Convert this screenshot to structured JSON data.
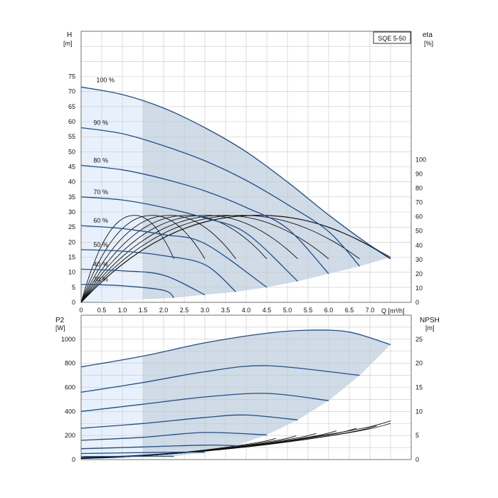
{
  "chart_data": [
    {
      "type": "line",
      "title": "SQE 5-50",
      "ylabel": "H",
      "yunit": "[m]",
      "y2label": "eta",
      "y2unit": "[%]",
      "xlabel": "Q [m³/h]",
      "xlim": [
        0,
        8
      ],
      "ylim": [
        0,
        90
      ],
      "y2lim": [
        0,
        190
      ],
      "xticks": [
        "0",
        "0.5",
        "1.0",
        "1.5",
        "2.0",
        "2.5",
        "3.0",
        "3.5",
        "4.0",
        "4.5",
        "5.0",
        "5.5",
        "6.0",
        "6.5",
        "7.0"
      ],
      "yticks": [
        "0",
        "5",
        "10",
        "15",
        "20",
        "25",
        "30",
        "35",
        "40",
        "45",
        "50",
        "55",
        "60",
        "65",
        "70",
        "75"
      ],
      "y2ticks": [
        "0",
        "10",
        "20",
        "30",
        "40",
        "50",
        "60",
        "70",
        "80",
        "90",
        "100"
      ],
      "grid": true,
      "shaded_region_x_from": 1.5,
      "series": [
        {
          "name": "100 %",
          "x": [
            0,
            1,
            2,
            3,
            4,
            5,
            6,
            7,
            7.5
          ],
          "y": [
            71.5,
            69,
            64.5,
            58,
            50,
            40,
            29,
            19,
            15
          ]
        },
        {
          "name": "90 %",
          "x": [
            0,
            1,
            2,
            3,
            4,
            5,
            6,
            6.75
          ],
          "y": [
            58,
            56,
            52,
            47,
            40.5,
            32.5,
            23.5,
            12
          ]
        },
        {
          "name": "80 %",
          "x": [
            0,
            1,
            2,
            3,
            4,
            5,
            6
          ],
          "y": [
            45.5,
            44,
            41,
            37,
            31.5,
            24.5,
            9.5
          ]
        },
        {
          "name": "70 %",
          "x": [
            0,
            1,
            2,
            3,
            4,
            5.25
          ],
          "y": [
            35,
            34,
            31.5,
            28,
            23,
            7
          ]
        },
        {
          "name": "60 %",
          "x": [
            0,
            1,
            2,
            3,
            4.5
          ],
          "y": [
            25.5,
            24.5,
            22.5,
            19.5,
            5
          ]
        },
        {
          "name": "50 %",
          "x": [
            0,
            1,
            2,
            3,
            3.75
          ],
          "y": [
            17.5,
            17,
            15.5,
            12.5,
            3.5
          ]
        },
        {
          "name": "40 %",
          "x": [
            0,
            1,
            2,
            3
          ],
          "y": [
            11,
            10.5,
            9,
            2.5
          ]
        },
        {
          "name": "30 %",
          "x": [
            0,
            1,
            2,
            2.25
          ],
          "y": [
            6,
            5.5,
            4,
            1.5
          ]
        }
      ],
      "efficiency_peak_pct": 61
    },
    {
      "type": "line",
      "ylabel": "P2",
      "yunit": "[W]",
      "y2label": "NPSH",
      "y2unit": "[m]",
      "xlim": [
        0,
        8
      ],
      "ylim": [
        0,
        1200
      ],
      "y2lim": [
        0,
        30
      ],
      "yticks": [
        "0",
        "200",
        "400",
        "600",
        "800",
        "1000"
      ],
      "y2ticks": [
        "0",
        "5",
        "10",
        "15",
        "20",
        "25"
      ],
      "grid": true,
      "shaded_region_x_from": 1.5,
      "series": [
        {
          "x": [
            0,
            1.5,
            3,
            4.5,
            5.5,
            6.5,
            7.5
          ],
          "y": [
            770,
            860,
            970,
            1050,
            1075,
            1060,
            955
          ]
        },
        {
          "x": [
            0,
            1.5,
            3,
            4.5,
            6.75
          ],
          "y": [
            560,
            640,
            730,
            780,
            700
          ]
        },
        {
          "x": [
            0,
            1.5,
            3,
            4.5,
            6
          ],
          "y": [
            400,
            460,
            520,
            550,
            490
          ]
        },
        {
          "x": [
            0,
            1.5,
            3,
            4,
            5.25
          ],
          "y": [
            260,
            300,
            350,
            370,
            330
          ]
        },
        {
          "x": [
            0,
            1.5,
            3,
            4.5
          ],
          "y": [
            160,
            185,
            225,
            205
          ]
        },
        {
          "x": [
            0,
            1.5,
            3,
            3.75
          ],
          "y": [
            90,
            105,
            120,
            115
          ]
        },
        {
          "x": [
            0,
            1.5,
            2.5,
            3
          ],
          "y": [
            50,
            58,
            62,
            60
          ]
        },
        {
          "x": [
            0,
            1.5,
            2.25
          ],
          "y": [
            25,
            28,
            27
          ]
        }
      ],
      "npsh": {
        "x": [
          0,
          1,
          2,
          3,
          4,
          5,
          6,
          7,
          7.5
        ],
        "y": [
          0.4,
          0.7,
          1.2,
          1.9,
          2.8,
          3.9,
          5.2,
          6.8,
          8
        ]
      }
    }
  ]
}
